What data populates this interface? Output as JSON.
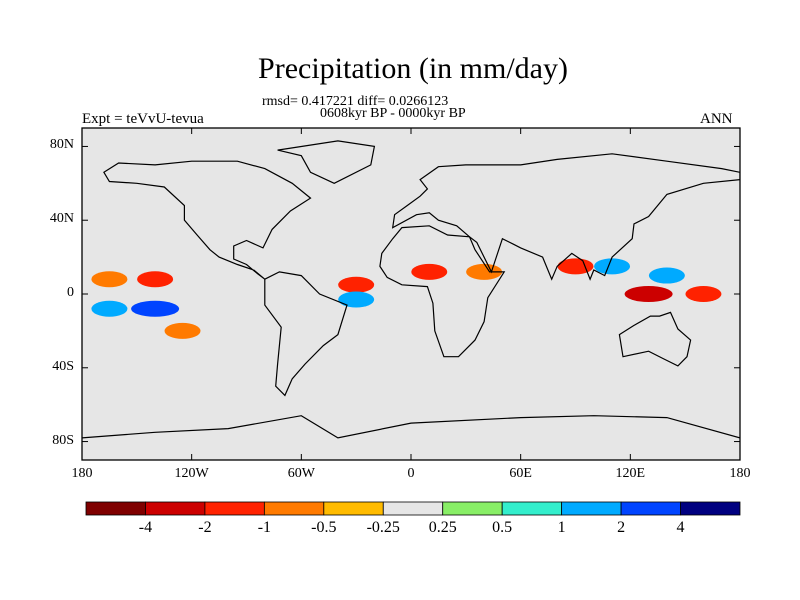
{
  "figure": {
    "title": "Precipitation (in mm/day)",
    "stats_line": "rmsd= 0.417221 diff= 0.0266123",
    "period_line": "0608kyr BP - 0000kyr BP",
    "left_label": "Expt = teVvU-tevua",
    "right_label": "ANN"
  },
  "map": {
    "lon_range": [
      -180,
      180
    ],
    "lat_range": [
      -90,
      90
    ],
    "lat_ticks": [
      {
        "lat": 80,
        "label": "80N"
      },
      {
        "lat": 40,
        "label": "40N"
      },
      {
        "lat": 0,
        "label": "0"
      },
      {
        "lat": -40,
        "label": "40S"
      },
      {
        "lat": -80,
        "label": "80S"
      }
    ],
    "lon_ticks": [
      {
        "lon": -180,
        "label": "180"
      },
      {
        "lon": -120,
        "label": "120W"
      },
      {
        "lon": -60,
        "label": "60W"
      },
      {
        "lon": 0,
        "label": "0"
      },
      {
        "lon": 60,
        "label": "60E"
      },
      {
        "lon": 120,
        "label": "120E"
      },
      {
        "lon": 180,
        "label": "180"
      }
    ],
    "background_color": "#e6e6e6"
  },
  "colorbar": {
    "colors": [
      "#7f0000",
      "#cc0000",
      "#ff2200",
      "#ff7a00",
      "#ffbb00",
      "#e6e6e6",
      "#88ee66",
      "#33eecc",
      "#00aaff",
      "#0044ff",
      "#000080"
    ],
    "tick_labels": [
      "-4",
      "-2",
      "-1",
      "-0.5",
      "-0.25",
      "0.25",
      "0.5",
      "1",
      "2",
      "4"
    ]
  },
  "chart_data": {
    "type": "heatmap",
    "title": "Precipitation (in mm/day)",
    "subtitle": "0608kyr BP - 0000kyr BP",
    "levels": [
      -4,
      -2,
      -1,
      -0.5,
      -0.25,
      0.25,
      0.5,
      1,
      2,
      4
    ],
    "xlim": [
      -180,
      180
    ],
    "ylim": [
      -90,
      90
    ],
    "anomaly_regions": [
      {
        "lon": -165,
        "lat": 8,
        "value": -0.75
      },
      {
        "lon": -140,
        "lat": 8,
        "value": -1.5
      },
      {
        "lon": -165,
        "lat": -8,
        "value": 1.5
      },
      {
        "lon": -140,
        "lat": -8,
        "value": 2.5
      },
      {
        "lon": -125,
        "lat": -20,
        "value": -0.75
      },
      {
        "lon": -30,
        "lat": 5,
        "value": -1.5
      },
      {
        "lon": -30,
        "lat": -3,
        "value": 1.5
      },
      {
        "lon": 10,
        "lat": 12,
        "value": -1
      },
      {
        "lon": 40,
        "lat": 12,
        "value": -0.75
      },
      {
        "lon": 90,
        "lat": 15,
        "value": -1
      },
      {
        "lon": 110,
        "lat": 15,
        "value": 1.5
      },
      {
        "lon": 130,
        "lat": 0,
        "value": -2.5
      },
      {
        "lon": 160,
        "lat": 0,
        "value": -1.5
      },
      {
        "lon": 140,
        "lat": 10,
        "value": 1.5
      }
    ]
  }
}
